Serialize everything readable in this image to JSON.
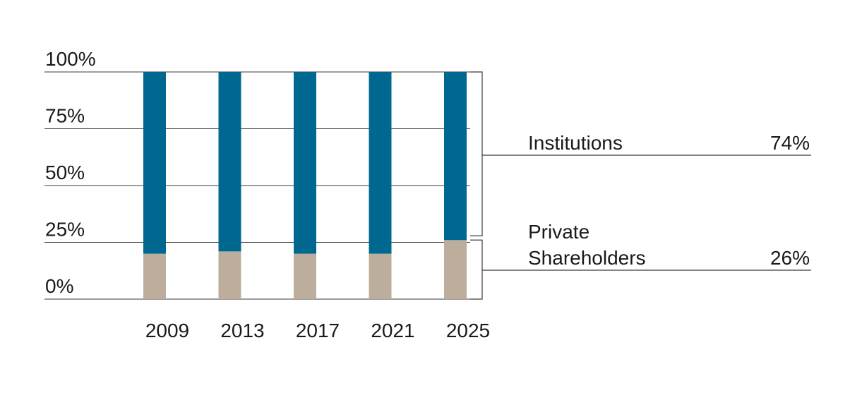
{
  "chart_data": {
    "type": "bar",
    "stacked": true,
    "categories": [
      "2009",
      "2013",
      "2017",
      "2021",
      "2025"
    ],
    "series": [
      {
        "name": "Private Shareholders",
        "color": "#bcad9c",
        "values": [
          20,
          21,
          20,
          20,
          26
        ]
      },
      {
        "name": "Institutions",
        "color": "#006890",
        "values": [
          80,
          79,
          80,
          80,
          74
        ]
      }
    ],
    "ylim": [
      0,
      100
    ],
    "y_ticks": [
      0,
      25,
      50,
      75,
      100
    ],
    "y_tick_labels": [
      "0%",
      "25%",
      "50%",
      "75%",
      "100%"
    ],
    "grid": true,
    "legend": [
      {
        "label_lines": [
          "Institutions"
        ],
        "value": "74%"
      },
      {
        "label_lines": [
          "Private",
          "Shareholders"
        ],
        "value": "26%"
      }
    ]
  }
}
